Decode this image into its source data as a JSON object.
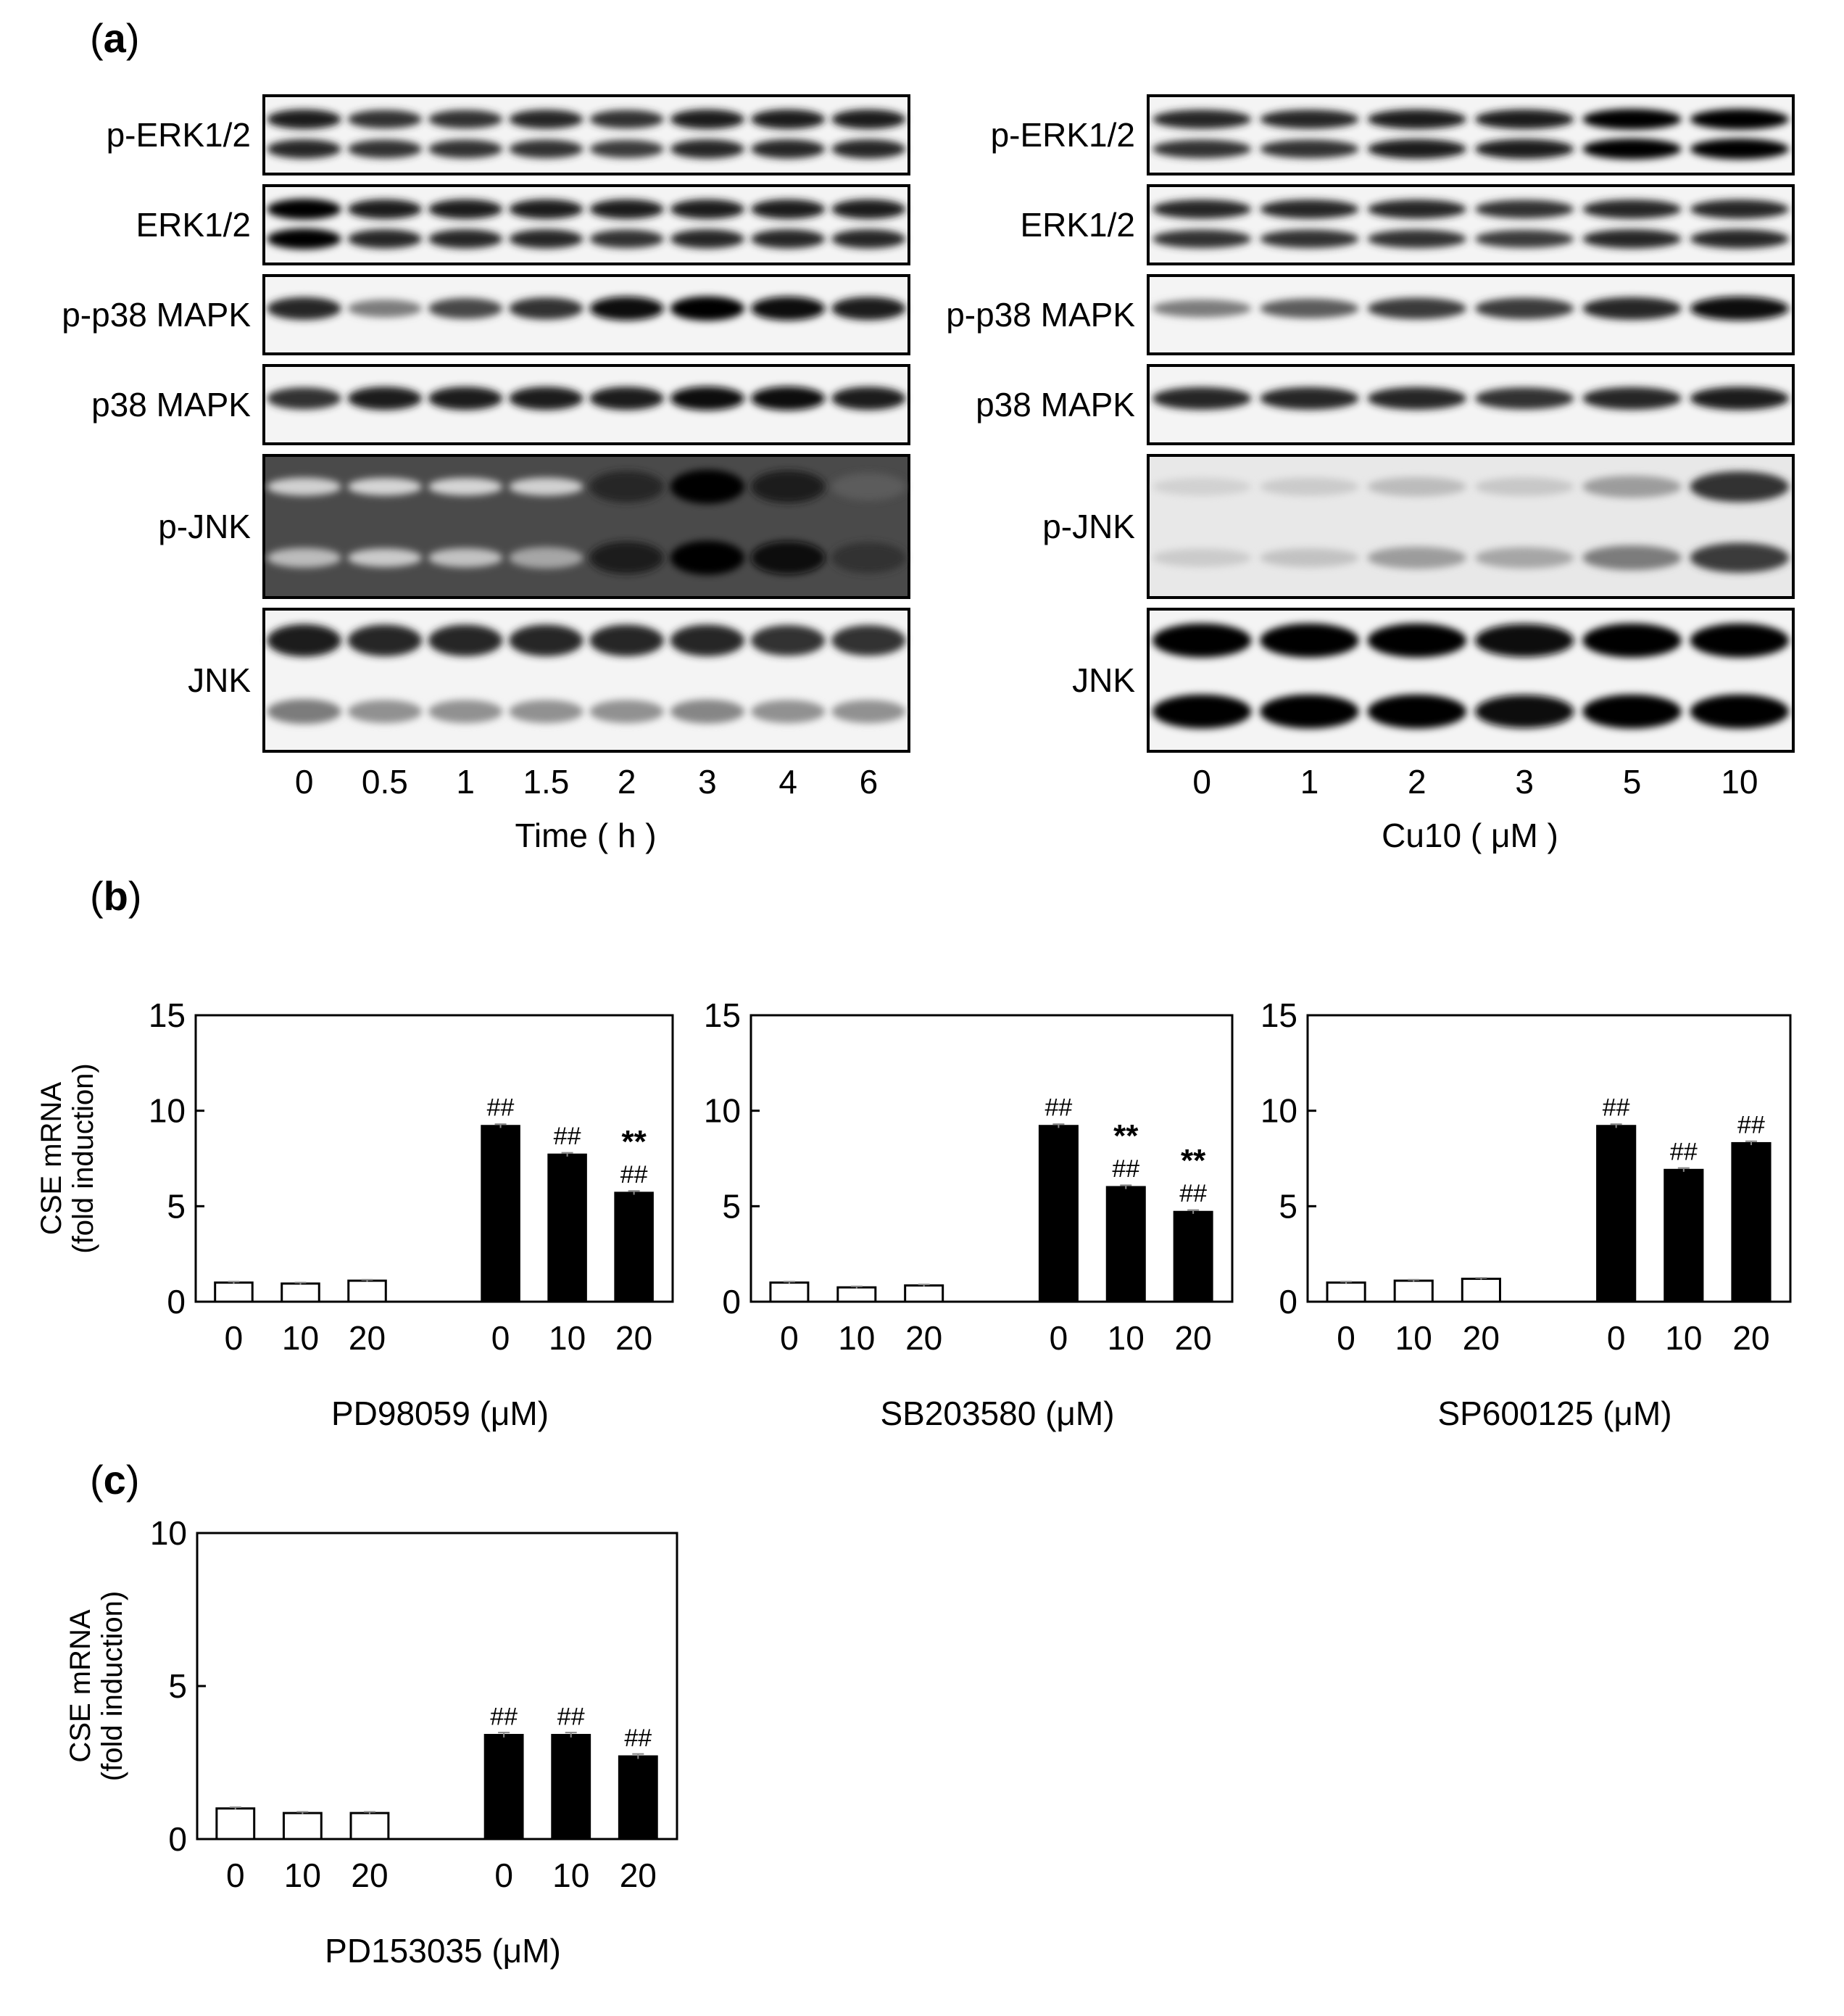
{
  "panel_labels": {
    "a": "a",
    "b": "b",
    "c": "c"
  },
  "blots": {
    "left": {
      "rows": [
        "p-ERK1/2",
        "ERK1/2",
        "p-p38 MAPK",
        "p38 MAPK",
        "p-JNK",
        "JNK"
      ],
      "lanes": [
        "0",
        "0.5",
        "1",
        "1.5",
        "2",
        "3",
        "4",
        "6"
      ],
      "xlabel": "Time ( h )",
      "band_intensity": {
        "p-ERK1/2": [
          [
            0.9,
            0.85
          ],
          [
            0.8,
            0.8
          ],
          [
            0.8,
            0.8
          ],
          [
            0.85,
            0.8
          ],
          [
            0.8,
            0.75
          ],
          [
            0.9,
            0.85
          ],
          [
            0.9,
            0.85
          ],
          [
            0.9,
            0.85
          ]
        ],
        "ERK1/2": [
          [
            1.0,
            1.0
          ],
          [
            0.9,
            0.85
          ],
          [
            0.9,
            0.85
          ],
          [
            0.9,
            0.85
          ],
          [
            0.9,
            0.8
          ],
          [
            0.9,
            0.85
          ],
          [
            0.9,
            0.85
          ],
          [
            0.9,
            0.85
          ]
        ],
        "p-p38 MAPK": [
          [
            0.85
          ],
          [
            0.45
          ],
          [
            0.7
          ],
          [
            0.8
          ],
          [
            0.95
          ],
          [
            1.0
          ],
          [
            0.95
          ],
          [
            0.9
          ]
        ],
        "p38 MAPK": [
          [
            0.8
          ],
          [
            0.9
          ],
          [
            0.9
          ],
          [
            0.9
          ],
          [
            0.9
          ],
          [
            0.95
          ],
          [
            0.95
          ],
          [
            0.9
          ]
        ],
        "p-JNK": [
          [
            0.05,
            0.15
          ],
          [
            0.03,
            0.08
          ],
          [
            0.03,
            0.12
          ],
          [
            0.05,
            0.25
          ],
          [
            0.85,
            0.9
          ],
          [
            1.0,
            1.0
          ],
          [
            0.9,
            0.95
          ],
          [
            0.6,
            0.8
          ]
        ],
        "JNK": [
          [
            0.9,
            0.45
          ],
          [
            0.85,
            0.35
          ],
          [
            0.85,
            0.35
          ],
          [
            0.85,
            0.35
          ],
          [
            0.85,
            0.35
          ],
          [
            0.85,
            0.4
          ],
          [
            0.8,
            0.35
          ],
          [
            0.8,
            0.35
          ]
        ]
      }
    },
    "right": {
      "rows": [
        "p-ERK1/2",
        "ERK1/2",
        "p-p38 MAPK",
        "p38 MAPK",
        "p-JNK",
        "JNK"
      ],
      "lanes": [
        "0",
        "1",
        "2",
        "3",
        "5",
        "10"
      ],
      "xlabel": "Cu10 ( μM )",
      "band_intensity": {
        "p-ERK1/2": [
          [
            0.85,
            0.8
          ],
          [
            0.85,
            0.8
          ],
          [
            0.9,
            0.9
          ],
          [
            0.9,
            0.9
          ],
          [
            1.0,
            1.0
          ],
          [
            1.0,
            1.0
          ]
        ],
        "ERK1/2": [
          [
            0.85,
            0.8
          ],
          [
            0.85,
            0.8
          ],
          [
            0.85,
            0.8
          ],
          [
            0.8,
            0.75
          ],
          [
            0.85,
            0.85
          ],
          [
            0.85,
            0.85
          ]
        ],
        "p-p38 MAPK": [
          [
            0.45
          ],
          [
            0.6
          ],
          [
            0.75
          ],
          [
            0.75
          ],
          [
            0.85
          ],
          [
            0.95
          ]
        ],
        "p38 MAPK": [
          [
            0.85
          ],
          [
            0.85
          ],
          [
            0.85
          ],
          [
            0.8
          ],
          [
            0.85
          ],
          [
            0.9
          ]
        ],
        "p-JNK": [
          [
            0.05,
            0.08
          ],
          [
            0.08,
            0.12
          ],
          [
            0.15,
            0.3
          ],
          [
            0.1,
            0.25
          ],
          [
            0.3,
            0.45
          ],
          [
            0.8,
            0.75
          ]
        ],
        "JNK": [
          [
            1.0,
            1.0
          ],
          [
            1.0,
            1.0
          ],
          [
            1.0,
            1.0
          ],
          [
            0.95,
            0.95
          ],
          [
            1.0,
            1.0
          ],
          [
            1.0,
            1.0
          ]
        ]
      }
    }
  },
  "chart_data": [
    {
      "type": "bar",
      "panel": "b",
      "xlabel": "PD98059 (μM)",
      "ylabel": "CSE mRNA\n(fold induction)",
      "ylim": [
        0,
        15
      ],
      "yticks": [
        "0",
        "5",
        "10",
        "15"
      ],
      "categories": [
        "0",
        "10",
        "20",
        "0",
        "10",
        "20"
      ],
      "values": [
        1.0,
        0.95,
        1.1,
        9.2,
        7.7,
        5.7
      ],
      "errors": [
        0.05,
        0.05,
        0.05,
        0.1,
        0.1,
        0.1
      ],
      "fill": [
        "white",
        "white",
        "white",
        "black",
        "black",
        "black"
      ],
      "annotations": [
        [],
        [],
        [],
        [
          "##"
        ],
        [
          "##"
        ],
        [
          "**",
          "##"
        ]
      ]
    },
    {
      "type": "bar",
      "panel": "b",
      "xlabel": "SB203580 (μM)",
      "ylabel": "",
      "ylim": [
        0,
        15
      ],
      "yticks": [
        "0",
        "5",
        "10",
        "15"
      ],
      "categories": [
        "0",
        "10",
        "20",
        "0",
        "10",
        "20"
      ],
      "values": [
        1.0,
        0.75,
        0.85,
        9.2,
        6.0,
        4.7
      ],
      "errors": [
        0.05,
        0.05,
        0.05,
        0.1,
        0.1,
        0.1
      ],
      "fill": [
        "white",
        "white",
        "white",
        "black",
        "black",
        "black"
      ],
      "annotations": [
        [],
        [],
        [],
        [
          "##"
        ],
        [
          "**",
          "##"
        ],
        [
          "**",
          "##"
        ]
      ]
    },
    {
      "type": "bar",
      "panel": "b",
      "xlabel": "SP600125 (μM)",
      "ylabel": "",
      "ylim": [
        0,
        15
      ],
      "yticks": [
        "0",
        "5",
        "10",
        "15"
      ],
      "categories": [
        "0",
        "10",
        "20",
        "0",
        "10",
        "20"
      ],
      "values": [
        1.0,
        1.1,
        1.2,
        9.2,
        6.9,
        8.3
      ],
      "errors": [
        0.05,
        0.05,
        0.05,
        0.1,
        0.1,
        0.1
      ],
      "fill": [
        "white",
        "white",
        "white",
        "black",
        "black",
        "black"
      ],
      "annotations": [
        [],
        [],
        [],
        [
          "##"
        ],
        [
          "##"
        ],
        [
          "##"
        ]
      ]
    },
    {
      "type": "bar",
      "panel": "c",
      "xlabel": "PD153035 (μM)",
      "ylabel": "CSE mRNA\n(fold induction)",
      "ylim": [
        0,
        10
      ],
      "yticks": [
        "0",
        "5",
        "10"
      ],
      "categories": [
        "0",
        "10",
        "20",
        "0",
        "10",
        "20"
      ],
      "values": [
        1.0,
        0.85,
        0.85,
        3.4,
        3.4,
        2.7
      ],
      "errors": [
        0.04,
        0.04,
        0.04,
        0.08,
        0.08,
        0.08
      ],
      "fill": [
        "white",
        "white",
        "white",
        "black",
        "black",
        "black"
      ],
      "annotations": [
        [],
        [],
        [],
        [
          "##"
        ],
        [
          "##"
        ],
        [
          "##"
        ]
      ]
    }
  ]
}
